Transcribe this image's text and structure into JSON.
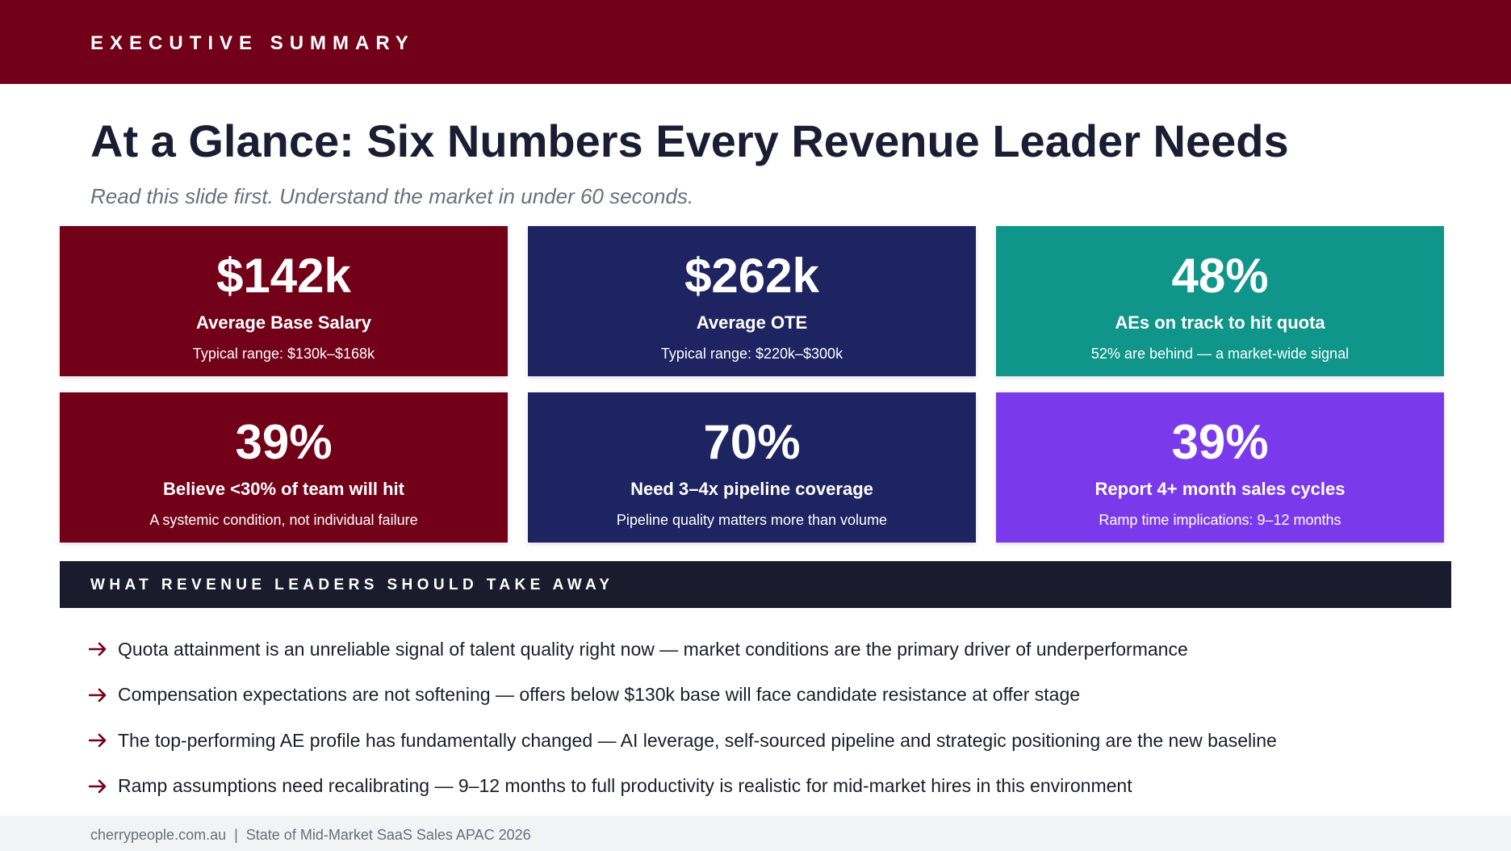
{
  "header": {
    "label": "EXECUTIVE SUMMARY"
  },
  "title": "At a Glance: Six Numbers Every Revenue Leader Needs",
  "subtitle": "Read this slide first. Understand the market in under 60 seconds.",
  "cards": [
    {
      "value": "$142k",
      "label": "Average Base Salary",
      "note": "Typical range: $130k–$168k",
      "color": "#730019"
    },
    {
      "value": "$262k",
      "label": "Average OTE",
      "note": "Typical range: $220k–$300k",
      "color": "#1e2461"
    },
    {
      "value": "48%",
      "label": "AEs on track to hit quota",
      "note": "52% are behind — a market-wide signal",
      "color": "#0f958a"
    },
    {
      "value": "39%",
      "label": "Believe <30% of team will hit",
      "note": "A systemic condition, not individual failure",
      "color": "#730019"
    },
    {
      "value": "70%",
      "label": "Need 3–4x pipeline coverage",
      "note": "Pipeline quality matters more than volume",
      "color": "#1e2461"
    },
    {
      "value": "39%",
      "label": "Report 4+ month sales cycles",
      "note": "Ramp time implications: 9–12 months",
      "color": "#7a3aec"
    }
  ],
  "takeaways": {
    "heading": "WHAT REVENUE LEADERS SHOULD TAKE AWAY",
    "items": [
      "Quota attainment is an unreliable signal of talent quality right now — market conditions are the primary driver of underperformance",
      "Compensation expectations are not softening — offers below $130k base will face candidate resistance at offer stage",
      "The top-performing AE profile has fundamentally changed — AI leverage, self-sourced pipeline and strategic positioning are the new baseline",
      "Ramp assumptions need recalibrating — 9–12 months to full productivity is realistic for mid-market hires in this environment"
    ],
    "icon": "arrow-right-icon",
    "accent": "#730019"
  },
  "footer": {
    "site": "cherrypeople.com.au",
    "separator": "|",
    "report": "State of Mid-Market SaaS Sales APAC 2026"
  }
}
